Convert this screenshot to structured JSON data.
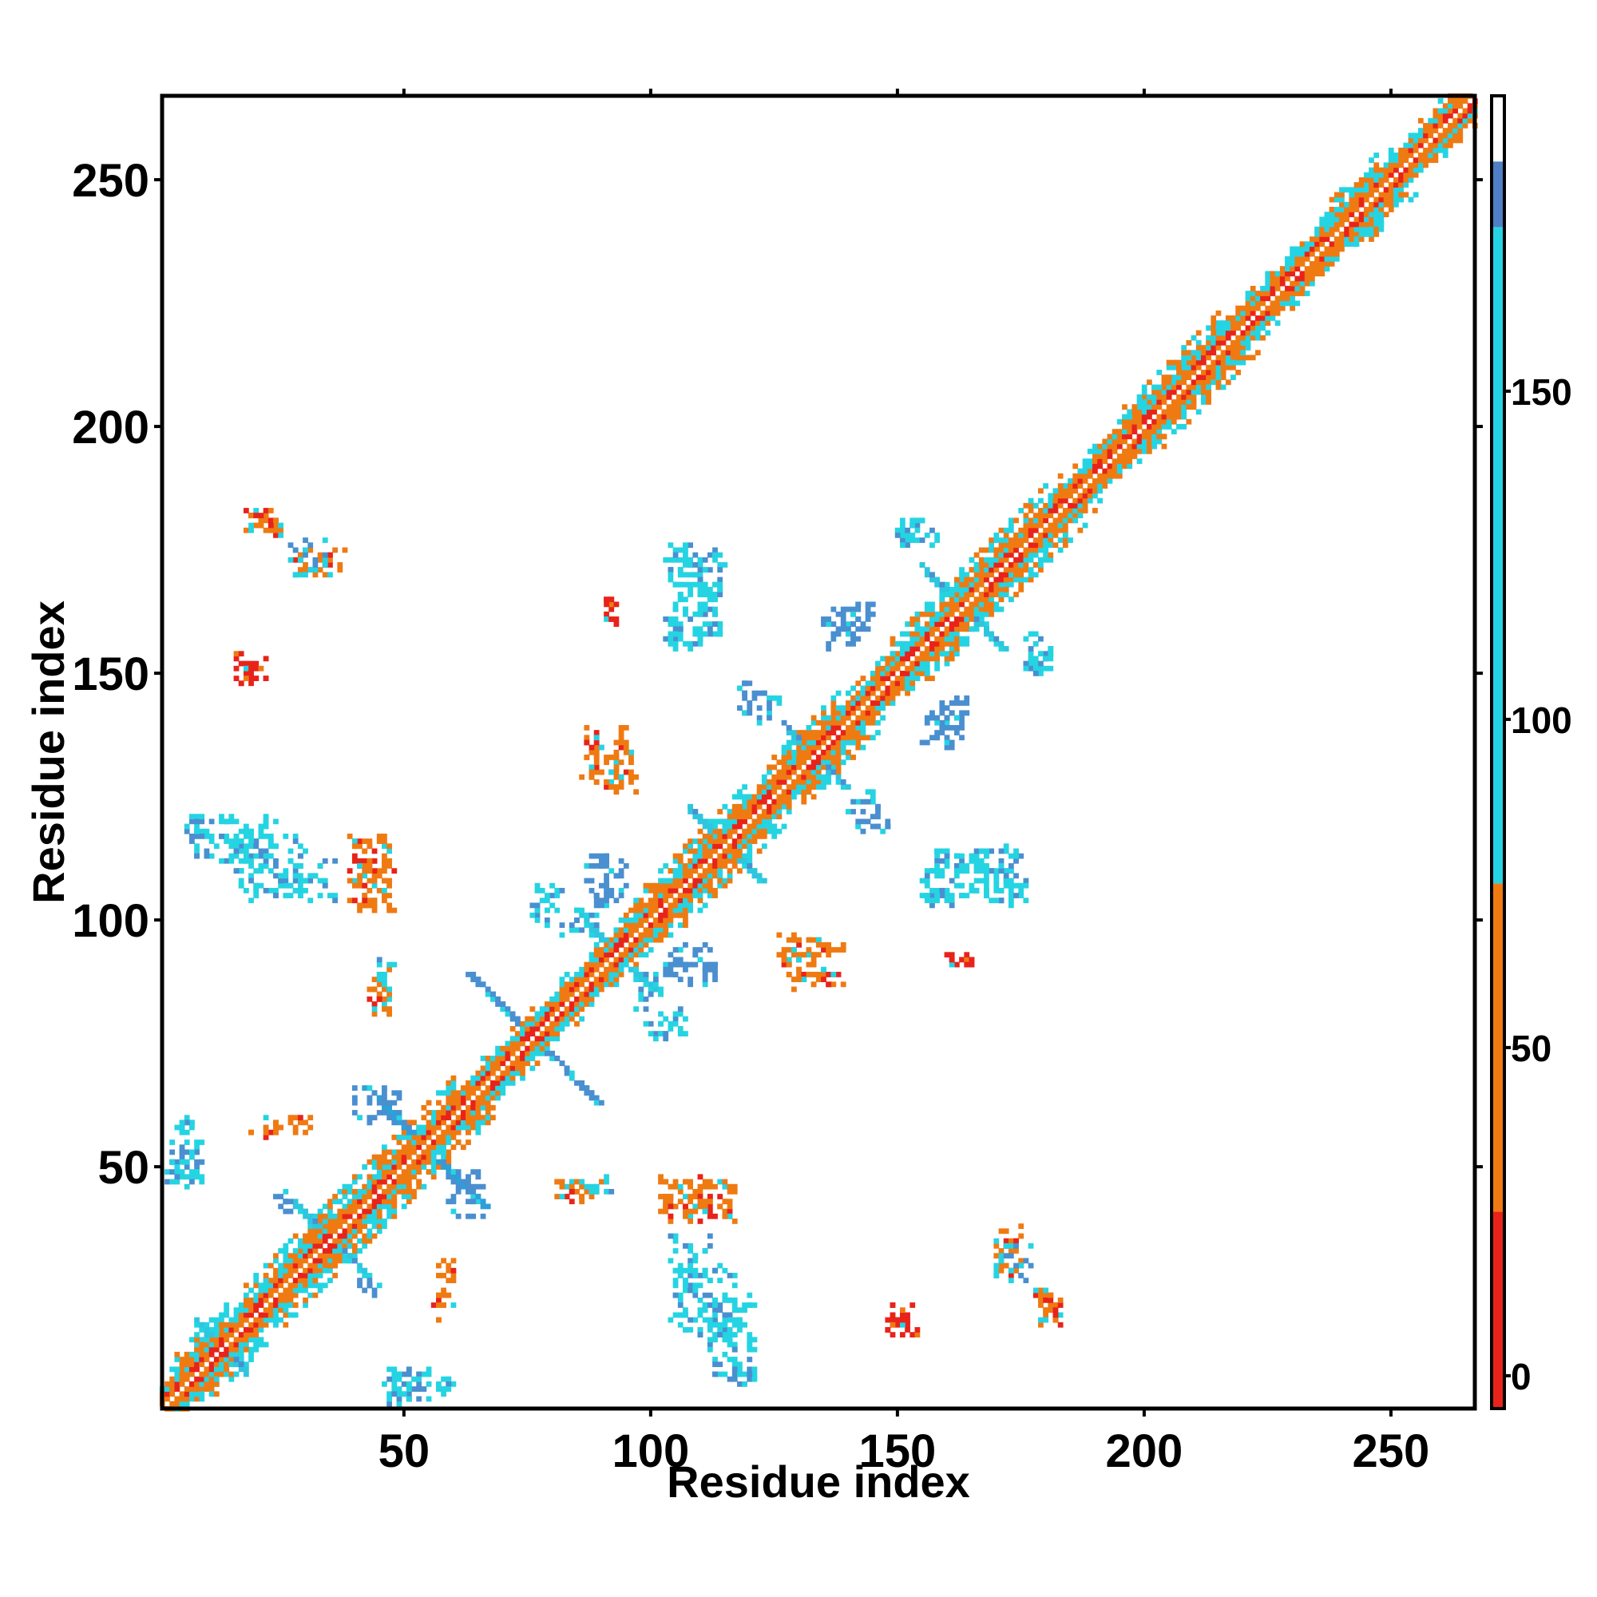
{
  "chart_data": {
    "type": "heatmap",
    "xlabel": "Residue index",
    "ylabel": "Residue index",
    "xlim": [
      1,
      267
    ],
    "ylim": [
      1,
      267
    ],
    "x_ticks": [
      50,
      100,
      150,
      200,
      250
    ],
    "y_ticks": [
      50,
      100,
      150,
      200,
      250
    ],
    "colorbar": {
      "range": [
        -5,
        195
      ],
      "ticks": [
        0,
        50,
        100,
        150
      ],
      "bands": [
        {
          "from": -5,
          "to": 25,
          "color": "#e8231a"
        },
        {
          "from": 25,
          "to": 75,
          "color": "#ef7a12"
        },
        {
          "from": 75,
          "to": 175,
          "color": "#25d4e2"
        },
        {
          "from": 175,
          "to": 185,
          "color": "#4f7fc4"
        },
        {
          "from": 185,
          "to": 195,
          "color": "#ffffff"
        }
      ]
    },
    "diagonal": {
      "from": 1,
      "to": 267,
      "half_width": 6
    },
    "helix_blocks": [
      {
        "from": 3,
        "to": 14
      },
      {
        "from": 17,
        "to": 40
      },
      {
        "from": 40,
        "to": 60
      },
      {
        "from": 97,
        "to": 120
      },
      {
        "from": 124,
        "to": 138
      },
      {
        "from": 148,
        "to": 166
      },
      {
        "from": 165,
        "to": 183
      },
      {
        "from": 195,
        "to": 215
      },
      {
        "from": 238,
        "to": 247
      }
    ],
    "cross_patterns": [
      {
        "cx": 54,
        "cy": 54,
        "arm": 12,
        "color": "#2e9fd8"
      },
      {
        "cx": 76,
        "cy": 76,
        "arm": 13,
        "color": "#4a8fd0"
      },
      {
        "cx": 93,
        "cy": 93,
        "arm": 8,
        "color": "#2ec6de"
      },
      {
        "cx": 115,
        "cy": 115,
        "arm": 7,
        "color": "#2ec6de"
      },
      {
        "cx": 133,
        "cy": 133,
        "arm": 6,
        "color": "#2ec6de"
      },
      {
        "cx": 163,
        "cy": 163,
        "arm": 8,
        "color": "#2ec6de"
      },
      {
        "cx": 13,
        "cy": 13,
        "arm": 5,
        "color": "#2ec6de"
      },
      {
        "cx": 35,
        "cy": 35,
        "arm": 7,
        "color": "#2ec6de"
      }
    ],
    "off_diagonal_clusters": [
      {
        "x": [
          2,
          9
        ],
        "y": [
          46,
          55
        ],
        "color": "#25d4e2"
      },
      {
        "x": [
          5,
          7
        ],
        "y": [
          58,
          61
        ],
        "color": "#25d4e2"
      },
      {
        "x": [
          19,
          24
        ],
        "y": [
          56,
          60
        ],
        "color": "#ef7a12"
      },
      {
        "x": [
          39,
          47
        ],
        "y": [
          102,
          117
        ],
        "color": "#ef7a12"
      },
      {
        "x": [
          7,
          25
        ],
        "y": [
          112,
          121
        ],
        "color": "#25d4e2"
      },
      {
        "x": [
          25,
          36
        ],
        "y": [
          104,
          112
        ],
        "color": "#25d4e2"
      },
      {
        "x": [
          16,
          22
        ],
        "y": [
          148,
          154
        ],
        "color": "#e8231a"
      },
      {
        "x": [
          18,
          25
        ],
        "y": [
          178,
          183
        ],
        "color": "#ef7a12"
      },
      {
        "x": [
          28,
          38
        ],
        "y": [
          170,
          176
        ],
        "color": "#ef7a12"
      },
      {
        "x": [
          43,
          47
        ],
        "y": [
          82,
          90
        ],
        "color": "#ef7a12"
      },
      {
        "x": [
          40,
          45
        ],
        "y": [
          24,
          28
        ],
        "color": "#4a8fd0"
      },
      {
        "x": [
          56,
          60
        ],
        "y": [
          24,
          31
        ],
        "color": "#ef7a12"
      },
      {
        "x": [
          47,
          55
        ],
        "y": [
          3,
          9
        ],
        "color": "#25d4e2"
      },
      {
        "x": [
          56,
          60
        ],
        "y": [
          4,
          6
        ],
        "color": "#25d4e2"
      },
      {
        "x": [
          59,
          66
        ],
        "y": [
          40,
          49
        ],
        "color": "#4a8fd0"
      },
      {
        "x": [
          80,
          88
        ],
        "y": [
          43,
          47
        ],
        "color": "#ef7a12"
      },
      {
        "x": [
          86,
          92
        ],
        "y": [
          44,
          48
        ],
        "color": "#25d4e2"
      },
      {
        "x": [
          102,
          117
        ],
        "y": [
          40,
          48
        ],
        "color": "#ef7a12"
      },
      {
        "x": [
          104,
          118
        ],
        "y": [
          16,
          30
        ],
        "color": "#25d4e2"
      },
      {
        "x": [
          115,
          121
        ],
        "y": [
          6,
          12
        ],
        "color": "#25d4e2"
      },
      {
        "x": [
          147,
          152
        ],
        "y": [
          16,
          20
        ],
        "color": "#e8231a"
      },
      {
        "x": [
          170,
          177
        ],
        "y": [
          27,
          35
        ],
        "color": "#25d4e2"
      },
      {
        "x": [
          178,
          183
        ],
        "y": [
          18,
          25
        ],
        "color": "#ef7a12"
      },
      {
        "x": [
          97,
          107
        ],
        "y": [
          76,
          82
        ],
        "color": "#25d4e2"
      },
      {
        "x": [
          84,
          89
        ],
        "y": [
          97,
          103
        ],
        "color": "#25d4e2"
      },
      {
        "x": [
          89,
          95
        ],
        "y": [
          102,
          113
        ],
        "color": "#4a8fd0"
      },
      {
        "x": [
          87,
          97
        ],
        "y": [
          126,
          137
        ],
        "color": "#ef7a12"
      },
      {
        "x": [
          91,
          93
        ],
        "y": [
          161,
          165
        ],
        "color": "#e8231a"
      },
      {
        "x": [
          103,
          115
        ],
        "y": [
          155,
          173
        ],
        "color": "#25d4e2"
      },
      {
        "x": [
          118,
          124
        ],
        "y": [
          140,
          148
        ],
        "color": "#4a8fd0"
      },
      {
        "x": [
          104,
          113
        ],
        "y": [
          87,
          92
        ],
        "color": "#4a8fd0"
      },
      {
        "x": [
          128,
          139
        ],
        "y": [
          86,
          96
        ],
        "color": "#ef7a12"
      },
      {
        "x": [
          141,
          146
        ],
        "y": [
          123,
          126
        ],
        "color": "#25d4e2"
      },
      {
        "x": [
          139,
          145
        ],
        "y": [
          157,
          164
        ],
        "color": "#4a8fd0"
      },
      {
        "x": [
          150,
          155
        ],
        "y": [
          176,
          181
        ],
        "color": "#25d4e2"
      },
      {
        "x": [
          155,
          165
        ],
        "y": [
          135,
          142
        ],
        "color": "#4a8fd0"
      },
      {
        "x": [
          156,
          176
        ],
        "y": [
          103,
          114
        ],
        "color": "#25d4e2"
      },
      {
        "x": [
          160,
          165
        ],
        "y": [
          90,
          93
        ],
        "color": "#e8231a"
      },
      {
        "x": [
          176,
          181
        ],
        "y": [
          150,
          158
        ],
        "color": "#25d4e2"
      }
    ]
  }
}
